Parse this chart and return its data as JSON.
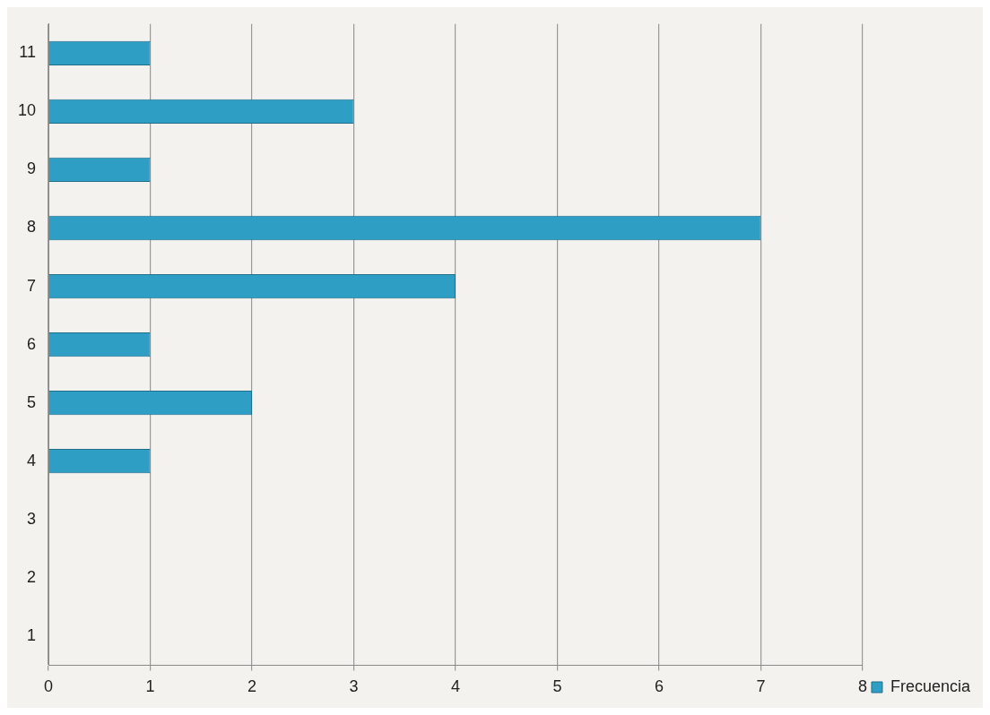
{
  "chart_data": {
    "type": "bar",
    "orientation": "horizontal",
    "categories": [
      "11",
      "10",
      "9",
      "8",
      "7",
      "6",
      "5",
      "4",
      "3",
      "2",
      "1"
    ],
    "series": [
      {
        "name": "Frecuencia",
        "color": "#2e9ec4",
        "values": [
          1,
          3,
          1,
          7,
          4,
          1,
          2,
          1,
          0,
          0,
          0
        ]
      }
    ],
    "xlim": [
      0,
      8
    ],
    "xticks": [
      0,
      1,
      2,
      3,
      4,
      5,
      6,
      7,
      8
    ],
    "grid": "x",
    "legend": "bottom right"
  }
}
